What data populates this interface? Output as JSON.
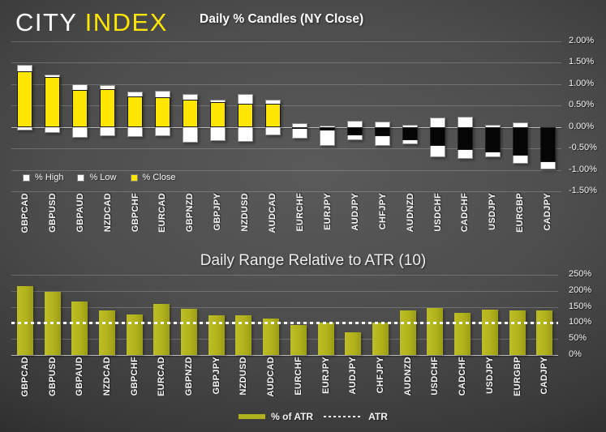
{
  "logo": {
    "city": "CITY",
    "index": "INDEX"
  },
  "colors": {
    "accent_yellow": "#ffe600",
    "close_up": "#ffe600",
    "close_down": "#000000",
    "high_low_white": "#ffffff",
    "atr_bar_olive": "#b2b21c",
    "reference_line": "#ffffff",
    "background_center": "#515151",
    "background_edge": "#1a1a1a"
  },
  "chart_data": [
    {
      "type": "bar",
      "subtype": "daily-percent-candles-overlap",
      "title": "Daily % Candles (NY Close)",
      "categories": [
        "GBPCAD",
        "GBPUSD",
        "GBPAUD",
        "NZDCAD",
        "GBPCHF",
        "EURCAD",
        "GBPNZD",
        "GBPJPY",
        "NZDUSD",
        "AUDCAD",
        "EURCHF",
        "EURJPY",
        "AUDJPY",
        "CHFJPY",
        "AUDNZD",
        "USDCHF",
        "CADCHF",
        "USDJPY",
        "EURGBP",
        "CADJPY"
      ],
      "series": [
        {
          "name": "% High",
          "values": [
            1.45,
            1.22,
            1.0,
            0.98,
            0.83,
            0.85,
            0.78,
            0.64,
            0.77,
            0.64,
            0.09,
            0.03,
            0.14,
            0.13,
            0.06,
            0.23,
            0.25,
            0.06,
            0.11,
            -0.01
          ]
        },
        {
          "name": "% Low",
          "values": [
            -0.09,
            -0.14,
            -0.26,
            -0.22,
            -0.24,
            -0.22,
            -0.36,
            -0.33,
            -0.34,
            -0.2,
            -0.26,
            -0.44,
            -0.31,
            -0.44,
            -0.4,
            -0.7,
            -0.74,
            -0.7,
            -0.86,
            -1.0
          ]
        },
        {
          "name": "% Close",
          "values": [
            1.3,
            1.16,
            0.87,
            0.89,
            0.71,
            0.69,
            0.64,
            0.58,
            0.55,
            0.55,
            -0.02,
            -0.09,
            -0.19,
            -0.21,
            -0.31,
            -0.44,
            -0.54,
            -0.59,
            -0.67,
            -0.82
          ]
        }
      ],
      "ylim": [
        -1.5,
        2.0
      ],
      "ytick_step": 0.5,
      "yticks": [
        "2.00%",
        "1.50%",
        "1.00%",
        "0.50%",
        "0.00%",
        "-0.50%",
        "-1.00%",
        "-1.50%"
      ],
      "yaxis_position": "right",
      "grid": true,
      "legend": [
        "% High",
        "% Low",
        "% Close"
      ],
      "legend_position": "inside-bottom-left"
    },
    {
      "type": "bar",
      "title": "Daily Range Relative to ATR (10)",
      "categories": [
        "GBPCAD",
        "GBPUSD",
        "GBPAUD",
        "NZDCAD",
        "GBPCHF",
        "EURCAD",
        "GBPNZD",
        "GBPJPY",
        "NZDUSD",
        "AUDCAD",
        "EURCHF",
        "EURJPY",
        "AUDJPY",
        "CHFJPY",
        "AUDNZD",
        "USDCHF",
        "CADCHF",
        "USDJPY",
        "EURGBP",
        "CADJPY"
      ],
      "values": [
        215,
        197,
        168,
        140,
        126,
        158,
        145,
        125,
        124,
        115,
        93,
        102,
        72,
        100,
        140,
        147,
        132,
        142,
        138,
        138
      ],
      "ylim": [
        0,
        250
      ],
      "ytick_step": 50,
      "yticks": [
        "250%",
        "200%",
        "150%",
        "100%",
        "50%",
        "0%"
      ],
      "yaxis_position": "right",
      "grid": true,
      "reference_line": {
        "name": "ATR",
        "value": 100,
        "style": "dotted"
      },
      "legend": [
        "% of ATR",
        "ATR"
      ],
      "legend_position": "bottom-center"
    }
  ]
}
